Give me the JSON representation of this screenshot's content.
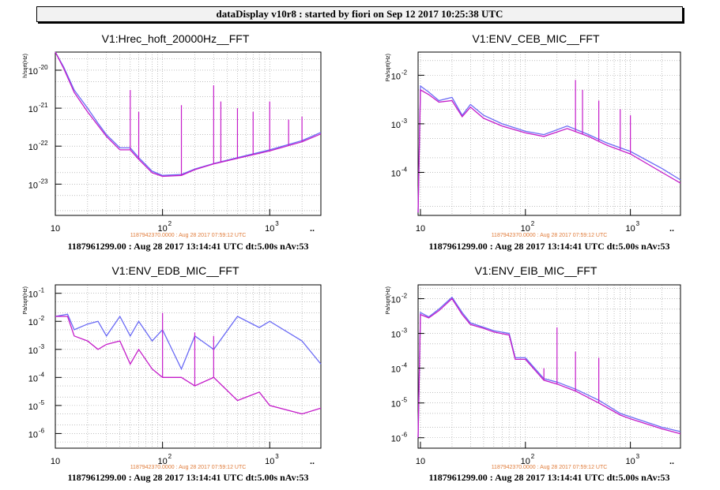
{
  "header": {
    "title": "dataDisplay v10r8 : started by fiori on Sep 12 2017 10:25:38 UTC"
  },
  "colors": {
    "series_blue": "#6a6af5",
    "series_magenta": "#c41cc9",
    "reference_text": "#e07b39"
  },
  "chart_data": [
    {
      "type": "line",
      "title": "V1:Hrec_hoft_20000Hz__FFT",
      "ylabel": "h/sqrt(Hz)",
      "xscale": "log",
      "yscale": "log",
      "xlim": [
        10,
        3000
      ],
      "ylim": [
        1.5e-24,
        3e-20
      ],
      "xticks": [
        {
          "base": "10",
          "exp": ""
        },
        {
          "base": "10",
          "exp": "2"
        },
        {
          "base": "10",
          "exp": "3"
        }
      ],
      "yticks": [
        {
          "base": "10",
          "exp": "-20"
        },
        {
          "base": "10",
          "exp": "-21"
        },
        {
          "base": "10",
          "exp": "-22"
        },
        {
          "base": "10",
          "exp": "-23"
        }
      ],
      "grid": true,
      "reference_label": "1187942370.0000 : Aug 28 2017 07:59:12 UTC",
      "footer": "1187961299.00 : Aug 28 2017 13:14:41 UTC dt:5.00s nAv:53",
      "series": [
        {
          "color": "#6a6af5",
          "points": [
            [
              10,
              3e-20
            ],
            [
              12,
              1.2e-20
            ],
            [
              15,
              3e-21
            ],
            [
              20,
              1e-21
            ],
            [
              25,
              4e-22
            ],
            [
              30,
              2e-22
            ],
            [
              40,
              9e-23
            ],
            [
              50,
              9e-23
            ],
            [
              60,
              5e-23
            ],
            [
              80,
              2.2e-23
            ],
            [
              100,
              1.7e-23
            ],
            [
              150,
              1.8e-23
            ],
            [
              200,
              2.5e-23
            ],
            [
              300,
              3.5e-23
            ],
            [
              500,
              5e-23
            ],
            [
              1000,
              8e-23
            ],
            [
              2000,
              1.4e-22
            ],
            [
              3000,
              2.3e-22
            ]
          ]
        },
        {
          "color": "#c41cc9",
          "points": [
            [
              10,
              3e-20
            ],
            [
              12,
              1.1e-20
            ],
            [
              15,
              2.6e-21
            ],
            [
              20,
              8e-22
            ],
            [
              25,
              3.5e-22
            ],
            [
              30,
              1.8e-22
            ],
            [
              40,
              8e-23
            ],
            [
              50,
              8e-23
            ],
            [
              60,
              4.5e-23
            ],
            [
              80,
              2e-23
            ],
            [
              100,
              1.6e-23
            ],
            [
              150,
              1.7e-23
            ],
            [
              200,
              2.4e-23
            ],
            [
              300,
              3.4e-23
            ],
            [
              500,
              4.8e-23
            ],
            [
              1000,
              7.5e-23
            ],
            [
              2000,
              1.3e-22
            ],
            [
              3000,
              2.1e-22
            ]
          ]
        }
      ],
      "peaks": [
        [
          50,
          3e-21
        ],
        [
          60,
          8e-22
        ],
        [
          150,
          1.2e-21
        ],
        [
          300,
          4e-21
        ],
        [
          350,
          1.5e-21
        ],
        [
          500,
          1e-21
        ],
        [
          700,
          8e-22
        ],
        [
          1000,
          1.5e-21
        ],
        [
          1500,
          5e-22
        ],
        [
          2000,
          6e-22
        ]
      ]
    },
    {
      "type": "line",
      "title": "V1:ENV_CEB_MIC__FFT",
      "ylabel": "Pa/sqrt(Hz)",
      "xscale": "log",
      "yscale": "log",
      "xlim": [
        9.5,
        3000
      ],
      "ylim": [
        1.3e-05,
        0.03
      ],
      "xticks": [
        {
          "base": "10",
          "exp": ""
        },
        {
          "base": "10",
          "exp": "2"
        },
        {
          "base": "10",
          "exp": "3"
        }
      ],
      "yticks": [
        {
          "base": "10",
          "exp": "-2"
        },
        {
          "base": "10",
          "exp": "-3"
        },
        {
          "base": "10",
          "exp": "-4"
        }
      ],
      "grid": true,
      "reference_label": "1187942370.0000 : Aug 28 2017 07:59:12 UTC",
      "footer": "1187961299.00 : Aug 28 2017 13:14:41 UTC dt:5.00s nAv:53",
      "series": [
        {
          "color": "#6a6af5",
          "points": [
            [
              9.5,
              1.5e-05
            ],
            [
              10,
              0.006
            ],
            [
              12,
              0.0045
            ],
            [
              15,
              0.003
            ],
            [
              20,
              0.0035
            ],
            [
              25,
              0.0015
            ],
            [
              30,
              0.0025
            ],
            [
              40,
              0.0015
            ],
            [
              60,
              0.001
            ],
            [
              100,
              0.0007
            ],
            [
              150,
              0.0006
            ],
            [
              250,
              0.0009
            ],
            [
              400,
              0.0006
            ],
            [
              600,
              0.0004
            ],
            [
              1000,
              0.00027
            ],
            [
              2000,
              0.00012
            ],
            [
              3000,
              7e-05
            ]
          ]
        },
        {
          "color": "#c41cc9",
          "points": [
            [
              9.5,
              1.5e-05
            ],
            [
              10,
              0.005
            ],
            [
              12,
              0.004
            ],
            [
              15,
              0.0028
            ],
            [
              20,
              0.003
            ],
            [
              25,
              0.0014
            ],
            [
              30,
              0.0022
            ],
            [
              40,
              0.0013
            ],
            [
              60,
              0.0009
            ],
            [
              100,
              0.00065
            ],
            [
              150,
              0.00055
            ],
            [
              250,
              0.0008
            ],
            [
              400,
              0.00055
            ],
            [
              600,
              0.00036
            ],
            [
              1000,
              0.00024
            ],
            [
              2000,
              0.0001
            ],
            [
              3000,
              6e-05
            ]
          ]
        }
      ],
      "peaks": [
        [
          300,
          0.008
        ],
        [
          350,
          0.005
        ],
        [
          500,
          0.003
        ],
        [
          800,
          0.002
        ],
        [
          1000,
          0.0015
        ]
      ]
    },
    {
      "type": "line",
      "title": "V1:ENV_EDB_MIC__FFT",
      "ylabel": "Pa/sqrt(Hz)",
      "xscale": "log",
      "yscale": "log",
      "xlim": [
        10,
        3000
      ],
      "ylim": [
        3e-07,
        0.2
      ],
      "xticks": [
        {
          "base": "10",
          "exp": ""
        },
        {
          "base": "10",
          "exp": "2"
        },
        {
          "base": "10",
          "exp": "3"
        }
      ],
      "yticks": [
        {
          "base": "10",
          "exp": "-1"
        },
        {
          "base": "10",
          "exp": "-2"
        },
        {
          "base": "10",
          "exp": "-3"
        },
        {
          "base": "10",
          "exp": "-4"
        },
        {
          "base": "10",
          "exp": "-5"
        },
        {
          "base": "10",
          "exp": "-6"
        }
      ],
      "grid": true,
      "reference_label": "1187942370.0000 : Aug 28 2017 07:59:12 UTC",
      "footer": "1187961299.00 : Aug 28 2017 13:14:41 UTC dt:5.00s nAv:53",
      "series": [
        {
          "color": "#6a6af5",
          "points": [
            [
              10,
              0.015
            ],
            [
              13,
              0.018
            ],
            [
              15,
              0.005
            ],
            [
              20,
              0.008
            ],
            [
              25,
              0.01
            ],
            [
              30,
              0.003
            ],
            [
              40,
              0.015
            ],
            [
              50,
              0.003
            ],
            [
              60,
              0.01
            ],
            [
              80,
              0.002
            ],
            [
              100,
              0.005
            ],
            [
              150,
              0.0002
            ],
            [
              200,
              0.003
            ],
            [
              300,
              0.001
            ],
            [
              500,
              0.015
            ],
            [
              800,
              0.006
            ],
            [
              1000,
              0.01
            ],
            [
              2000,
              0.002
            ],
            [
              3000,
              0.0003
            ]
          ]
        },
        {
          "color": "#c41cc9",
          "points": [
            [
              10,
              0.015
            ],
            [
              13,
              0.015
            ],
            [
              15,
              0.003
            ],
            [
              20,
              0.002
            ],
            [
              25,
              0.001
            ],
            [
              30,
              0.0015
            ],
            [
              40,
              0.002
            ],
            [
              50,
              0.0003
            ],
            [
              60,
              0.001
            ],
            [
              80,
              0.0002
            ],
            [
              100,
              0.0001
            ],
            [
              150,
              0.0001
            ],
            [
              200,
              5e-05
            ],
            [
              300,
              0.0001
            ],
            [
              500,
              1.5e-05
            ],
            [
              800,
              3e-05
            ],
            [
              1000,
              1e-05
            ],
            [
              2000,
              5e-06
            ],
            [
              3000,
              8e-06
            ]
          ]
        }
      ],
      "peaks": [
        [
          100,
          0.02
        ],
        [
          200,
          0.004
        ],
        [
          300,
          0.003
        ]
      ]
    },
    {
      "type": "line",
      "title": "V1:ENV_EIB_MIC__FFT",
      "ylabel": "Pa/sqrt(Hz)",
      "xscale": "log",
      "yscale": "log",
      "xlim": [
        9.5,
        3000
      ],
      "ylim": [
        5e-07,
        0.025
      ],
      "xticks": [
        {
          "base": "10",
          "exp": ""
        },
        {
          "base": "10",
          "exp": "2"
        },
        {
          "base": "10",
          "exp": "3"
        }
      ],
      "yticks": [
        {
          "base": "10",
          "exp": "-2"
        },
        {
          "base": "10",
          "exp": "-3"
        },
        {
          "base": "10",
          "exp": "-4"
        },
        {
          "base": "10",
          "exp": "-5"
        },
        {
          "base": "10",
          "exp": "-6"
        }
      ],
      "grid": true,
      "reference_label": "1187942370.0000 : Aug 28 2017 07:59:12 UTC",
      "footer": "1187961299.00 : Aug 28 2017 13:14:41 UTC dt:5.00s nAv:53",
      "series": [
        {
          "color": "#6a6af5",
          "points": [
            [
              9.5,
              1e-06
            ],
            [
              10,
              0.004
            ],
            [
              12,
              0.003
            ],
            [
              15,
              0.005
            ],
            [
              20,
              0.011
            ],
            [
              25,
              0.004
            ],
            [
              30,
              0.002
            ],
            [
              40,
              0.0015
            ],
            [
              50,
              0.0012
            ],
            [
              70,
              0.001
            ],
            [
              80,
              0.0002
            ],
            [
              100,
              0.0002
            ],
            [
              150,
              5e-05
            ],
            [
              200,
              4e-05
            ],
            [
              300,
              2.5e-05
            ],
            [
              500,
              1.2e-05
            ],
            [
              800,
              5e-06
            ],
            [
              1000,
              4e-06
            ],
            [
              2000,
              2e-06
            ],
            [
              3000,
              1.5e-06
            ]
          ]
        },
        {
          "color": "#c41cc9",
          "points": [
            [
              9.5,
              1e-06
            ],
            [
              10,
              0.0035
            ],
            [
              12,
              0.0028
            ],
            [
              15,
              0.0045
            ],
            [
              20,
              0.01
            ],
            [
              25,
              0.0035
            ],
            [
              30,
              0.0018
            ],
            [
              40,
              0.0014
            ],
            [
              50,
              0.0011
            ],
            [
              70,
              0.0009
            ],
            [
              80,
              0.00018
            ],
            [
              100,
              0.00018
            ],
            [
              150,
              4.5e-05
            ],
            [
              200,
              3.5e-05
            ],
            [
              300,
              2.2e-05
            ],
            [
              500,
              1e-05
            ],
            [
              800,
              4.5e-06
            ],
            [
              1000,
              3.5e-06
            ],
            [
              2000,
              1.8e-06
            ],
            [
              3000,
              1.3e-06
            ]
          ]
        }
      ],
      "peaks": [
        [
          150,
          0.0001
        ],
        [
          200,
          0.0015
        ],
        [
          300,
          0.0003
        ],
        [
          500,
          0.0002
        ]
      ]
    }
  ]
}
